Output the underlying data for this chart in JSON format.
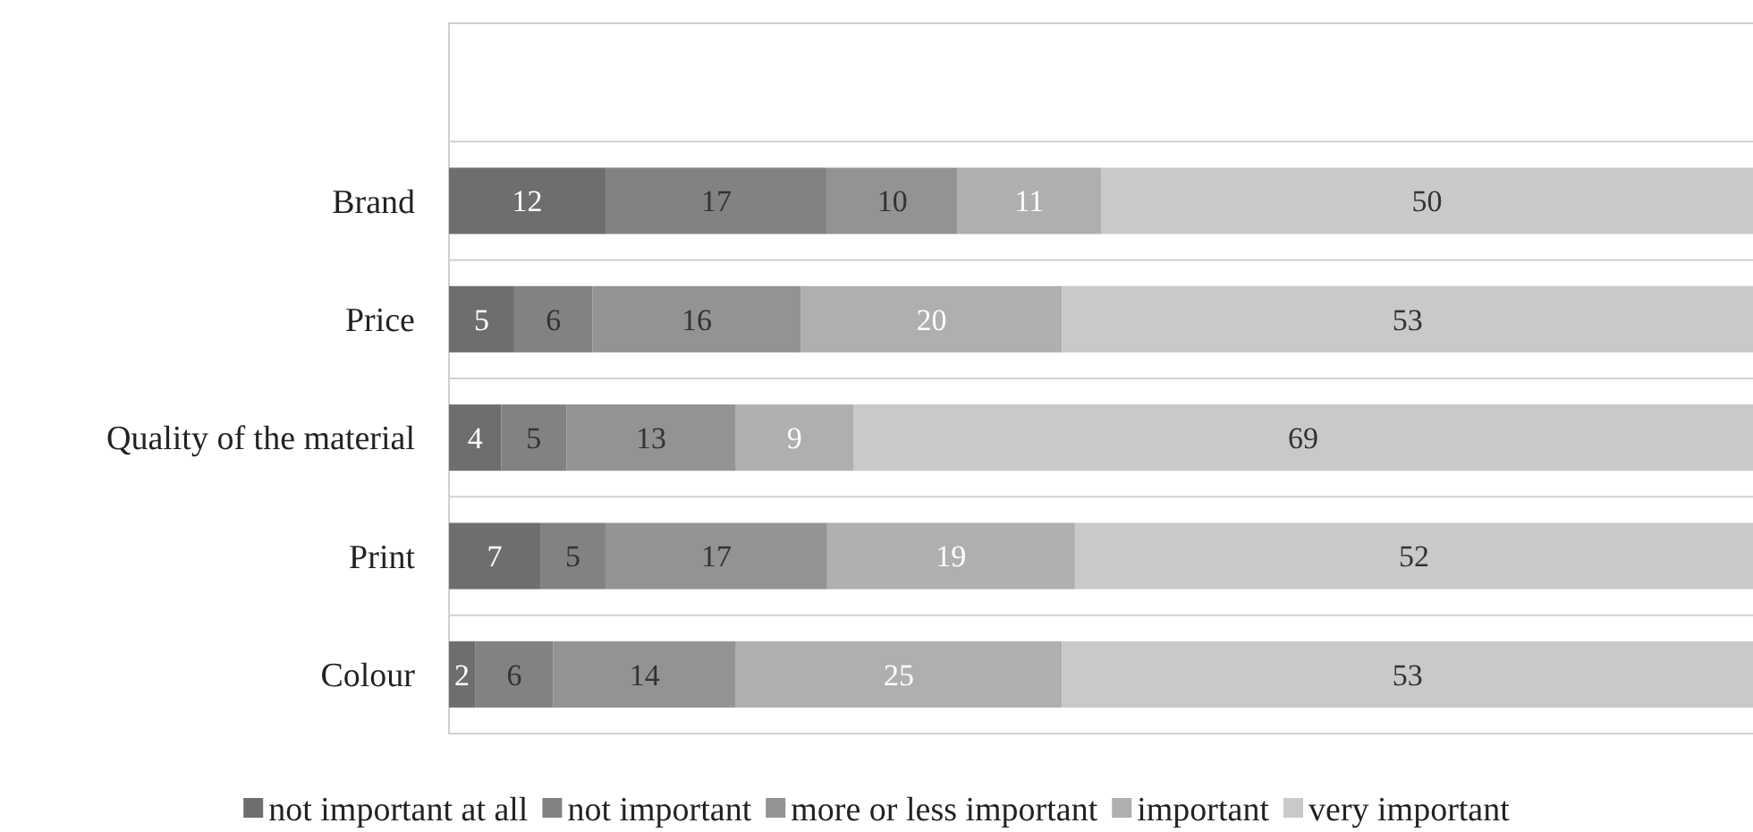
{
  "chart_data": {
    "type": "bar",
    "orientation": "horizontal",
    "stacked": true,
    "categories": [
      "Brand",
      "Price",
      "Quality of the material",
      "Print",
      "Colour"
    ],
    "series": [
      {
        "name": "not important at all",
        "color": "#6e6e6e",
        "values": [
          12,
          5,
          4,
          7,
          2
        ]
      },
      {
        "name": "not important",
        "color": "#828282",
        "values": [
          17,
          6,
          5,
          5,
          6
        ]
      },
      {
        "name": "more or less important",
        "color": "#939393",
        "values": [
          10,
          16,
          13,
          17,
          14
        ]
      },
      {
        "name": "important",
        "color": "#afafaf",
        "values": [
          11,
          20,
          9,
          19,
          25
        ]
      },
      {
        "name": "very important",
        "color": "#c9c9c9",
        "values": [
          50,
          53,
          69,
          52,
          53
        ]
      }
    ],
    "xlim": [
      0,
      100
    ],
    "tick_labels": "y",
    "legend": "bottom",
    "data_labels": true
  }
}
